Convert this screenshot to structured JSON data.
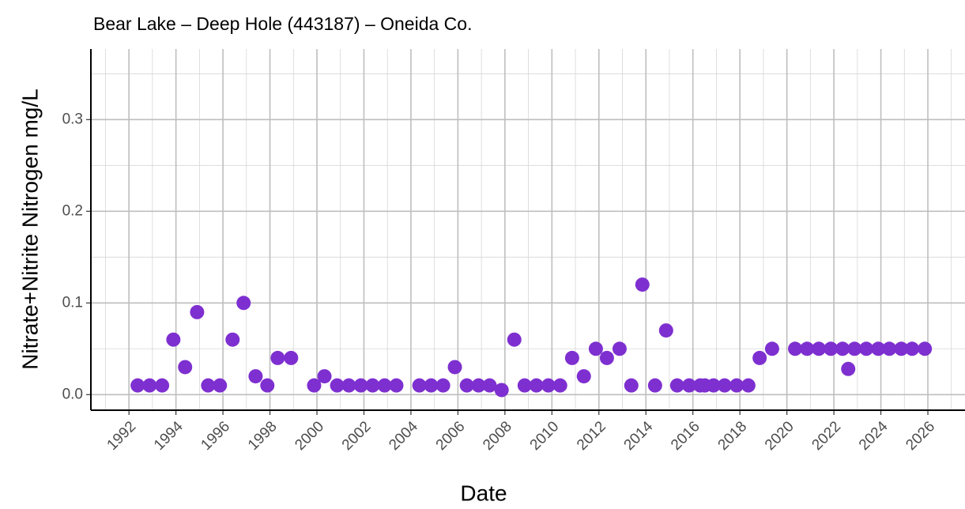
{
  "chart_data": {
    "type": "scatter",
    "title": "Bear Lake – Deep Hole (443187) – Oneida Co.",
    "x_label": "Date",
    "y_label": "Nitrate+Nitrite Nitrogen mg/L",
    "color": "#7e2fd0",
    "grid": true,
    "xlim": [
      1990.38,
      2027.58
    ],
    "ylim": [
      -0.017,
      0.377
    ],
    "xticks": [
      1992,
      1994,
      1996,
      1998,
      2000,
      2002,
      2004,
      2006,
      2008,
      2010,
      2012,
      2014,
      2016,
      2018,
      2020,
      2022,
      2024,
      2026
    ],
    "yticks": [
      {
        "value": 0,
        "label": "0.0"
      },
      0.1,
      0.2,
      0.3
    ],
    "x": [
      1992.37,
      1992.88,
      1993.41,
      1993.89,
      1994.39,
      1994.9,
      1995.37,
      1995.87,
      1996.41,
      1996.88,
      1997.39,
      1997.89,
      1998.33,
      1998.9,
      1999.88,
      2000.32,
      2000.86,
      2001.36,
      2001.87,
      2002.37,
      2002.88,
      2003.38,
      2004.36,
      2004.86,
      2005.37,
      2005.87,
      2006.38,
      2006.88,
      2007.35,
      2007.86,
      2008.4,
      2008.84,
      2009.34,
      2009.85,
      2010.35,
      2010.86,
      2011.36,
      2011.87,
      2012.34,
      2012.88,
      2013.38,
      2013.85,
      2014.39,
      2014.86,
      2015.33,
      2015.84,
      2016.31,
      2016.51,
      2016.88,
      2017.35,
      2017.86,
      2018.36,
      2018.84,
      2019.37,
      2020.35,
      2020.86,
      2021.36,
      2021.87,
      2022.37,
      2022.61,
      2022.88,
      2023.38,
      2023.89,
      2024.36,
      2024.87,
      2025.33,
      2025.87
    ],
    "values": [
      0.01,
      0.01,
      0.01,
      0.06,
      0.03,
      0.09,
      0.01,
      0.01,
      0.06,
      0.1,
      0.02,
      0.01,
      0.04,
      0.04,
      0.01,
      0.02,
      0.01,
      0.01,
      0.01,
      0.01,
      0.01,
      0.01,
      0.01,
      0.01,
      0.01,
      0.03,
      0.01,
      0.01,
      0.01,
      0.005,
      0.06,
      0.01,
      0.01,
      0.01,
      0.01,
      0.04,
      0.02,
      0.05,
      0.04,
      0.05,
      0.01,
      0.12,
      0.01,
      0.07,
      0.01,
      0.01,
      0.01,
      0.01,
      0.01,
      0.01,
      0.01,
      0.01,
      0.04,
      0.05,
      0.05,
      0.05,
      0.05,
      0.05,
      0.05,
      0.028,
      0.05,
      0.05,
      0.05,
      0.05,
      0.05,
      0.05,
      0.05
    ]
  }
}
